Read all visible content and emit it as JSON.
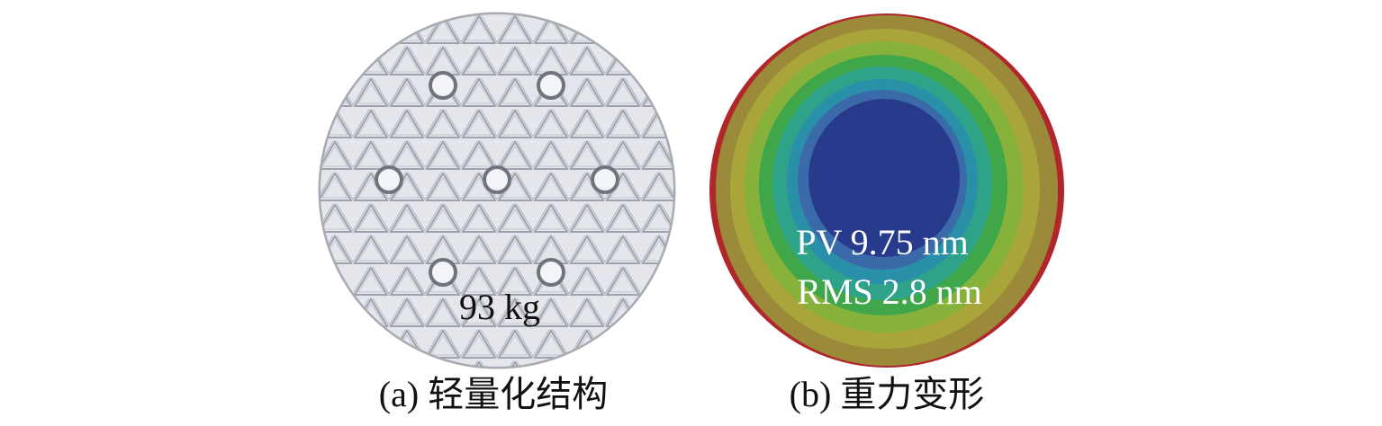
{
  "panels": [
    {
      "caption": "(a) 轻量化结构",
      "annotation": "93 kg"
    },
    {
      "caption": "(b) 重力变形",
      "annotations": [
        "PV 9.75 nm",
        "RMS 2.8 nm"
      ]
    }
  ]
}
